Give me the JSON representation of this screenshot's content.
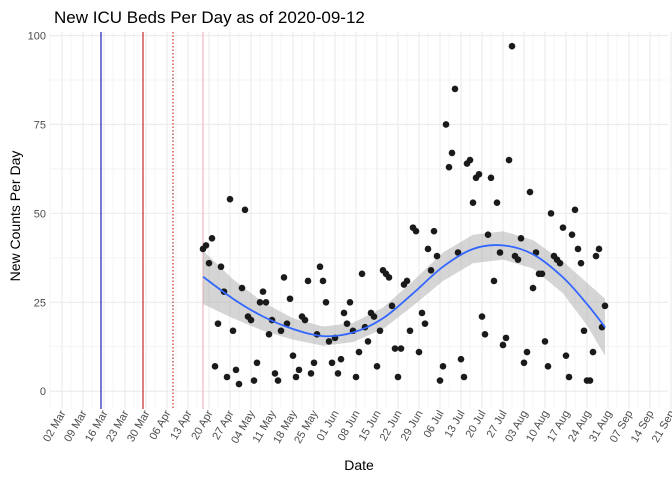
{
  "chart_data": {
    "type": "scatter",
    "title": "New ICU Beds Per Day as of 2020-09-12",
    "xlabel": "Date",
    "ylabel": "New Counts Per Day",
    "x_axis": {
      "type": "date",
      "range": [
        "2020-02-27",
        "2020-09-20"
      ],
      "tick_labels": [
        "02 Mar",
        "09 Mar",
        "16 Mar",
        "23 Mar",
        "30 Mar",
        "06 Apr",
        "13 Apr",
        "20 Apr",
        "27 Apr",
        "04 May",
        "11 May",
        "18 May",
        "25 May",
        "01 Jun",
        "08 Jun",
        "15 Jun",
        "22 Jun",
        "29 Jun",
        "06 Jul",
        "13 Jul",
        "20 Jul",
        "27 Jul",
        "03 Aug",
        "10 Aug",
        "17 Aug",
        "24 Aug",
        "31 Aug",
        "07 Sep",
        "14 Sep",
        "21 Sep"
      ]
    },
    "y_axis": {
      "range": [
        -5,
        101
      ],
      "ticks": [
        0,
        25,
        50,
        75,
        100
      ]
    },
    "grid": true,
    "legend": "none",
    "colors": {
      "points": "#1a1a1a",
      "smooth": "#3366ff",
      "band": "#b3b3b3",
      "grid": "#ebebeb"
    },
    "vertical_lines": [
      {
        "date": "2020-03-15",
        "color": "#1f1fb0",
        "style": "solid"
      },
      {
        "date": "2020-03-29",
        "color": "#c42b2b",
        "style": "solid"
      },
      {
        "date": "2020-04-08",
        "color": "#c42b2b",
        "style": "dotted"
      },
      {
        "date": "2020-04-18",
        "color": "#f4b8c0",
        "style": "solid"
      }
    ],
    "series": [
      {
        "values": [
          [
            "2020-04-18",
            40
          ],
          [
            "2020-04-19",
            41
          ],
          [
            "2020-04-20",
            36
          ],
          [
            "2020-04-21",
            43
          ],
          [
            "2020-04-22",
            7
          ],
          [
            "2020-04-23",
            19
          ],
          [
            "2020-04-24",
            35
          ],
          [
            "2020-04-25",
            28
          ],
          [
            "2020-04-26",
            4
          ],
          [
            "2020-04-27",
            54
          ],
          [
            "2020-04-28",
            17
          ],
          [
            "2020-04-29",
            6
          ],
          [
            "2020-04-30",
            2
          ],
          [
            "2020-05-01",
            29
          ],
          [
            "2020-05-02",
            51
          ],
          [
            "2020-05-03",
            21
          ],
          [
            "2020-05-04",
            20
          ],
          [
            "2020-05-05",
            3
          ],
          [
            "2020-05-06",
            8
          ],
          [
            "2020-05-07",
            25
          ],
          [
            "2020-05-08",
            28
          ],
          [
            "2020-05-09",
            25
          ],
          [
            "2020-05-10",
            16
          ],
          [
            "2020-05-11",
            20
          ],
          [
            "2020-05-12",
            5
          ],
          [
            "2020-05-13",
            3
          ],
          [
            "2020-05-14",
            17
          ],
          [
            "2020-05-15",
            32
          ],
          [
            "2020-05-16",
            19
          ],
          [
            "2020-05-17",
            26
          ],
          [
            "2020-05-18",
            10
          ],
          [
            "2020-05-19",
            4
          ],
          [
            "2020-05-20",
            6
          ],
          [
            "2020-05-21",
            21
          ],
          [
            "2020-05-22",
            20
          ],
          [
            "2020-05-23",
            31
          ],
          [
            "2020-05-24",
            5
          ],
          [
            "2020-05-25",
            8
          ],
          [
            "2020-05-26",
            16
          ],
          [
            "2020-05-27",
            35
          ],
          [
            "2020-05-28",
            31
          ],
          [
            "2020-05-29",
            25
          ],
          [
            "2020-05-30",
            14
          ],
          [
            "2020-05-31",
            8
          ],
          [
            "2020-06-01",
            15
          ],
          [
            "2020-06-02",
            5
          ],
          [
            "2020-06-03",
            9
          ],
          [
            "2020-06-04",
            22
          ],
          [
            "2020-06-05",
            19
          ],
          [
            "2020-06-06",
            25
          ],
          [
            "2020-06-07",
            17
          ],
          [
            "2020-06-08",
            4
          ],
          [
            "2020-06-09",
            11
          ],
          [
            "2020-06-10",
            33
          ],
          [
            "2020-06-11",
            18
          ],
          [
            "2020-06-12",
            14
          ],
          [
            "2020-06-13",
            22
          ],
          [
            "2020-06-14",
            21
          ],
          [
            "2020-06-15",
            7
          ],
          [
            "2020-06-16",
            17
          ],
          [
            "2020-06-17",
            34
          ],
          [
            "2020-06-18",
            33
          ],
          [
            "2020-06-19",
            32
          ],
          [
            "2020-06-20",
            24
          ],
          [
            "2020-06-21",
            12
          ],
          [
            "2020-06-22",
            4
          ],
          [
            "2020-06-23",
            12
          ],
          [
            "2020-06-24",
            30
          ],
          [
            "2020-06-25",
            31
          ],
          [
            "2020-06-26",
            17
          ],
          [
            "2020-06-27",
            46
          ],
          [
            "2020-06-28",
            45
          ],
          [
            "2020-06-29",
            11
          ],
          [
            "2020-06-30",
            22
          ],
          [
            "2020-07-01",
            19
          ],
          [
            "2020-07-02",
            40
          ],
          [
            "2020-07-03",
            34
          ],
          [
            "2020-07-04",
            45
          ],
          [
            "2020-07-05",
            38
          ],
          [
            "2020-07-06",
            3
          ],
          [
            "2020-07-07",
            7
          ],
          [
            "2020-07-08",
            75
          ],
          [
            "2020-07-09",
            63
          ],
          [
            "2020-07-10",
            67
          ],
          [
            "2020-07-11",
            85
          ],
          [
            "2020-07-12",
            39
          ],
          [
            "2020-07-13",
            9
          ],
          [
            "2020-07-14",
            4
          ],
          [
            "2020-07-15",
            64
          ],
          [
            "2020-07-16",
            65
          ],
          [
            "2020-07-17",
            53
          ],
          [
            "2020-07-18",
            60
          ],
          [
            "2020-07-19",
            61
          ],
          [
            "2020-07-20",
            21
          ],
          [
            "2020-07-21",
            16
          ],
          [
            "2020-07-22",
            44
          ],
          [
            "2020-07-23",
            60
          ],
          [
            "2020-07-24",
            31
          ],
          [
            "2020-07-25",
            53
          ],
          [
            "2020-07-26",
            39
          ],
          [
            "2020-07-27",
            13
          ],
          [
            "2020-07-28",
            15
          ],
          [
            "2020-07-29",
            65
          ],
          [
            "2020-07-30",
            97
          ],
          [
            "2020-07-31",
            38
          ],
          [
            "2020-08-01",
            37
          ],
          [
            "2020-08-02",
            43
          ],
          [
            "2020-08-03",
            8
          ],
          [
            "2020-08-04",
            11
          ],
          [
            "2020-08-05",
            56
          ],
          [
            "2020-08-06",
            29
          ],
          [
            "2020-08-07",
            39
          ],
          [
            "2020-08-08",
            33
          ],
          [
            "2020-08-09",
            33
          ],
          [
            "2020-08-10",
            14
          ],
          [
            "2020-08-11",
            7
          ],
          [
            "2020-08-12",
            50
          ],
          [
            "2020-08-13",
            38
          ],
          [
            "2020-08-14",
            37
          ],
          [
            "2020-08-15",
            36
          ],
          [
            "2020-08-16",
            46
          ],
          [
            "2020-08-17",
            10
          ],
          [
            "2020-08-18",
            4
          ],
          [
            "2020-08-19",
            44
          ],
          [
            "2020-08-20",
            51
          ],
          [
            "2020-08-21",
            40
          ],
          [
            "2020-08-22",
            36
          ],
          [
            "2020-08-23",
            17
          ],
          [
            "2020-08-24",
            3
          ],
          [
            "2020-08-25",
            3
          ],
          [
            "2020-08-26",
            11
          ],
          [
            "2020-08-27",
            38
          ],
          [
            "2020-08-28",
            40
          ],
          [
            "2020-08-29",
            18
          ],
          [
            "2020-08-30",
            24
          ]
        ]
      }
    ],
    "smooth": [
      [
        "2020-04-18",
        32.2,
        24.5,
        39.5
      ],
      [
        "2020-04-28",
        26.0,
        20.5,
        31.5
      ],
      [
        "2020-05-08",
        21.0,
        17.0,
        25.0
      ],
      [
        "2020-05-18",
        17.5,
        14.5,
        20.5
      ],
      [
        "2020-05-28",
        15.5,
        12.8,
        18.2
      ],
      [
        "2020-06-07",
        16.5,
        13.8,
        19.2
      ],
      [
        "2020-06-17",
        20.5,
        17.5,
        23.5
      ],
      [
        "2020-06-27",
        27.5,
        24.0,
        31.0
      ],
      [
        "2020-07-07",
        35.0,
        31.0,
        39.0
      ],
      [
        "2020-07-17",
        40.0,
        36.0,
        44.0
      ],
      [
        "2020-07-27",
        41.0,
        37.0,
        45.0
      ],
      [
        "2020-08-06",
        38.5,
        34.5,
        42.5
      ],
      [
        "2020-08-16",
        32.0,
        27.5,
        36.5
      ],
      [
        "2020-08-24",
        24.5,
        18.5,
        30.5
      ],
      [
        "2020-08-30",
        18.0,
        10.0,
        26.0
      ]
    ]
  }
}
